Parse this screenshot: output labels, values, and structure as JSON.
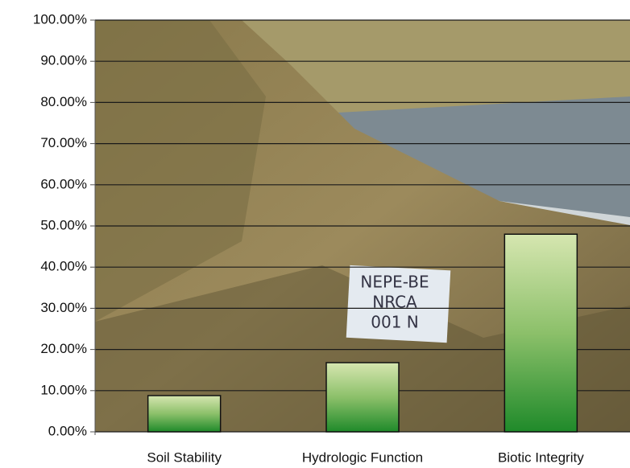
{
  "chart_data": {
    "type": "bar",
    "categories": [
      "Soil Stability",
      "Hydrologic Function",
      "Biotic Integrity"
    ],
    "values": [
      8.8,
      16.8,
      48.0
    ],
    "color": "#3f9a3a",
    "ylim": [
      0,
      100
    ],
    "yticks": [
      {
        "value": 0,
        "label": "0.00%"
      },
      {
        "value": 10,
        "label": "10.00%"
      },
      {
        "value": 20,
        "label": "20.00%"
      },
      {
        "value": 30,
        "label": "30.00%"
      },
      {
        "value": 40,
        "label": "40.00%"
      },
      {
        "value": 50,
        "label": "50.00%"
      },
      {
        "value": 60,
        "label": "60.00%"
      },
      {
        "value": 70,
        "label": "70.00%"
      },
      {
        "value": 80,
        "label": "80.00%"
      },
      {
        "value": 90,
        "label": "90.00%"
      },
      {
        "value": 100,
        "label": "100.00%"
      }
    ],
    "grid": true,
    "annotations": [
      "NEPE-BE",
      "NRCA",
      "001 N"
    ]
  }
}
